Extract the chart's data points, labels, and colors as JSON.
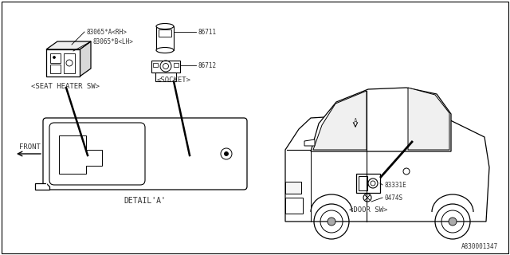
{
  "bg_color": "#ffffff",
  "line_color": "#000000",
  "text_color": "#333333",
  "parts": {
    "sh_rh": "83065*A<RH>",
    "sh_lh": "83065*B<LH>",
    "sock_top": "86711",
    "sock_bot": "86712",
    "sock_lbl": "<SOCKET>",
    "sh_lbl": "<SEAT HEATER SW>",
    "detail_lbl": "DETAIL'A'",
    "front_lbl": "FRONT",
    "door_sw_lbl": "<DOOR SW>",
    "door_num1": "83331E",
    "door_num2": "0474S",
    "ref": "A830001347"
  },
  "fs": 5.5,
  "fn": 6.5,
  "fl": 7.0
}
